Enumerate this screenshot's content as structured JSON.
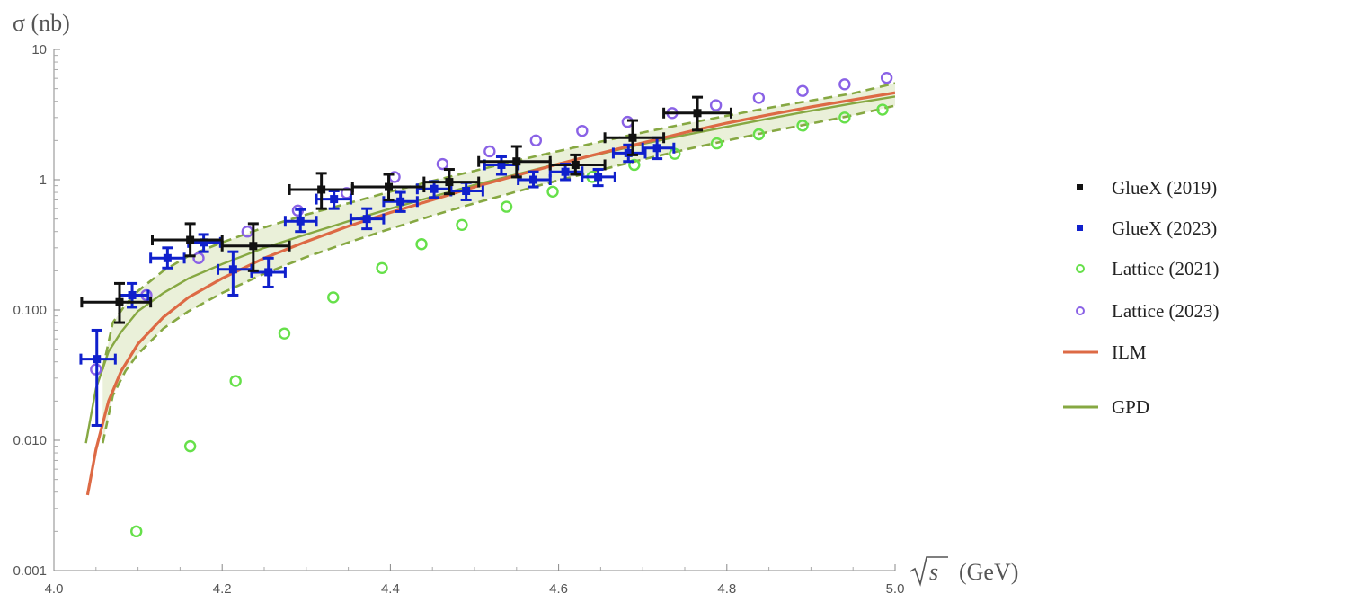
{
  "chart_data": {
    "type": "scatter",
    "y_title": "σ (nb)",
    "x_title_radicand": "s",
    "x_title_unit": "(GeV)",
    "xlim": [
      4.0,
      5.0
    ],
    "ylim": [
      0.001,
      10
    ],
    "y_scale": "log",
    "x_ticks": [
      "4.0",
      "4.2",
      "4.4",
      "4.6",
      "4.8",
      "5.0"
    ],
    "y_ticks": [
      "0.001",
      "0.010",
      "0.100",
      "1",
      "10"
    ],
    "legend_position": "right",
    "colors": {
      "gluex2019": "#111111",
      "gluex2023": "#1020cc",
      "lattice2021": "#66e04a",
      "lattice2023": "#8a62e6",
      "ilm": "#dd6a45",
      "gpd": "#86a842",
      "band_fill": "#eaf0d9"
    },
    "series": [
      {
        "name": "GlueX (2019)",
        "key": "gluex2019",
        "marker": "square",
        "points": [
          {
            "x": 4.078,
            "y": 0.115,
            "xlo": 4.033,
            "xhi": 4.115,
            "ylo": 0.08,
            "yhi": 0.16
          },
          {
            "x": 4.162,
            "y": 0.345,
            "xlo": 4.117,
            "xhi": 4.2,
            "ylo": 0.26,
            "yhi": 0.46
          },
          {
            "x": 4.237,
            "y": 0.31,
            "xlo": 4.2,
            "xhi": 4.28,
            "ylo": 0.2,
            "yhi": 0.46
          },
          {
            "x": 4.318,
            "y": 0.84,
            "xlo": 4.28,
            "xhi": 4.355,
            "ylo": 0.6,
            "yhi": 1.12
          },
          {
            "x": 4.398,
            "y": 0.88,
            "xlo": 4.355,
            "xhi": 4.44,
            "ylo": 0.7,
            "yhi": 1.1
          },
          {
            "x": 4.47,
            "y": 0.96,
            "xlo": 4.44,
            "xhi": 4.505,
            "ylo": 0.78,
            "yhi": 1.2
          },
          {
            "x": 4.55,
            "y": 1.38,
            "xlo": 4.505,
            "xhi": 4.59,
            "ylo": 1.05,
            "yhi": 1.8
          },
          {
            "x": 4.62,
            "y": 1.3,
            "xlo": 4.59,
            "xhi": 4.655,
            "ylo": 1.1,
            "yhi": 1.55
          },
          {
            "x": 4.688,
            "y": 2.1,
            "xlo": 4.655,
            "xhi": 4.725,
            "ylo": 1.55,
            "yhi": 2.85
          },
          {
            "x": 4.765,
            "y": 3.25,
            "xlo": 4.725,
            "xhi": 4.805,
            "ylo": 2.4,
            "yhi": 4.3
          }
        ]
      },
      {
        "name": "GlueX (2023)",
        "key": "gluex2023",
        "marker": "square",
        "points": [
          {
            "x": 4.051,
            "y": 0.042,
            "xlo": 4.032,
            "xhi": 4.073,
            "ylo": 0.013,
            "yhi": 0.07
          },
          {
            "x": 4.093,
            "y": 0.13,
            "xlo": 4.078,
            "xhi": 4.112,
            "ylo": 0.105,
            "yhi": 0.16
          },
          {
            "x": 4.135,
            "y": 0.25,
            "xlo": 4.115,
            "xhi": 4.155,
            "ylo": 0.21,
            "yhi": 0.3
          },
          {
            "x": 4.178,
            "y": 0.33,
            "xlo": 4.16,
            "xhi": 4.198,
            "ylo": 0.28,
            "yhi": 0.38
          },
          {
            "x": 4.213,
            "y": 0.205,
            "xlo": 4.195,
            "xhi": 4.235,
            "ylo": 0.13,
            "yhi": 0.28
          },
          {
            "x": 4.255,
            "y": 0.195,
            "xlo": 4.235,
            "xhi": 4.275,
            "ylo": 0.15,
            "yhi": 0.25
          },
          {
            "x": 4.293,
            "y": 0.48,
            "xlo": 4.275,
            "xhi": 4.312,
            "ylo": 0.4,
            "yhi": 0.59
          },
          {
            "x": 4.333,
            "y": 0.71,
            "xlo": 4.312,
            "xhi": 4.353,
            "ylo": 0.6,
            "yhi": 0.82
          },
          {
            "x": 4.372,
            "y": 0.5,
            "xlo": 4.353,
            "xhi": 4.392,
            "ylo": 0.42,
            "yhi": 0.6
          },
          {
            "x": 4.412,
            "y": 0.68,
            "xlo": 4.392,
            "xhi": 4.432,
            "ylo": 0.57,
            "yhi": 0.8
          },
          {
            "x": 4.452,
            "y": 0.85,
            "xlo": 4.432,
            "xhi": 4.472,
            "ylo": 0.73,
            "yhi": 0.97
          },
          {
            "x": 4.49,
            "y": 0.82,
            "xlo": 4.472,
            "xhi": 4.51,
            "ylo": 0.7,
            "yhi": 0.95
          },
          {
            "x": 4.532,
            "y": 1.3,
            "xlo": 4.512,
            "xhi": 4.552,
            "ylo": 1.1,
            "yhi": 1.5
          },
          {
            "x": 4.57,
            "y": 1.0,
            "xlo": 4.552,
            "xhi": 4.59,
            "ylo": 0.88,
            "yhi": 1.15
          },
          {
            "x": 4.608,
            "y": 1.15,
            "xlo": 4.59,
            "xhi": 4.628,
            "ylo": 1.0,
            "yhi": 1.32
          },
          {
            "x": 4.647,
            "y": 1.05,
            "xlo": 4.628,
            "xhi": 4.667,
            "ylo": 0.9,
            "yhi": 1.2
          },
          {
            "x": 4.683,
            "y": 1.6,
            "xlo": 4.665,
            "xhi": 4.703,
            "ylo": 1.38,
            "yhi": 1.85
          },
          {
            "x": 4.717,
            "y": 1.75,
            "xlo": 4.7,
            "xhi": 4.737,
            "ylo": 1.45,
            "yhi": 2.1
          }
        ]
      },
      {
        "name": "Lattice (2021)",
        "key": "lattice2021",
        "marker": "circle",
        "points": [
          {
            "x": 4.098,
            "y": 0.002
          },
          {
            "x": 4.162,
            "y": 0.009
          },
          {
            "x": 4.216,
            "y": 0.0285
          },
          {
            "x": 4.274,
            "y": 0.066
          },
          {
            "x": 4.332,
            "y": 0.125
          },
          {
            "x": 4.39,
            "y": 0.21
          },
          {
            "x": 4.437,
            "y": 0.32
          },
          {
            "x": 4.485,
            "y": 0.45
          },
          {
            "x": 4.538,
            "y": 0.62
          },
          {
            "x": 4.593,
            "y": 0.81
          },
          {
            "x": 4.64,
            "y": 1.05
          },
          {
            "x": 4.69,
            "y": 1.3
          },
          {
            "x": 4.738,
            "y": 1.58
          },
          {
            "x": 4.788,
            "y": 1.9
          },
          {
            "x": 4.838,
            "y": 2.23
          },
          {
            "x": 4.89,
            "y": 2.6
          },
          {
            "x": 4.94,
            "y": 3.0
          },
          {
            "x": 4.985,
            "y": 3.45
          }
        ]
      },
      {
        "name": "Lattice (2023)",
        "key": "lattice2023",
        "marker": "circle",
        "points": [
          {
            "x": 4.05,
            "y": 0.035
          },
          {
            "x": 4.11,
            "y": 0.13
          },
          {
            "x": 4.172,
            "y": 0.25
          },
          {
            "x": 4.23,
            "y": 0.4
          },
          {
            "x": 4.29,
            "y": 0.58
          },
          {
            "x": 4.348,
            "y": 0.79
          },
          {
            "x": 4.405,
            "y": 1.05
          },
          {
            "x": 4.462,
            "y": 1.32
          },
          {
            "x": 4.518,
            "y": 1.65
          },
          {
            "x": 4.573,
            "y": 2.0
          },
          {
            "x": 4.628,
            "y": 2.37
          },
          {
            "x": 4.682,
            "y": 2.78
          },
          {
            "x": 4.735,
            "y": 3.25
          },
          {
            "x": 4.787,
            "y": 3.73
          },
          {
            "x": 4.838,
            "y": 4.25
          },
          {
            "x": 4.89,
            "y": 4.8
          },
          {
            "x": 4.94,
            "y": 5.4
          },
          {
            "x": 4.99,
            "y": 6.05
          }
        ]
      },
      {
        "name": "ILM",
        "key": "ilm",
        "marker": "line",
        "points": [
          {
            "x": 4.04,
            "y": 0.0038
          },
          {
            "x": 4.05,
            "y": 0.0085
          },
          {
            "x": 4.065,
            "y": 0.02
          },
          {
            "x": 4.08,
            "y": 0.034
          },
          {
            "x": 4.1,
            "y": 0.055
          },
          {
            "x": 4.13,
            "y": 0.088
          },
          {
            "x": 4.16,
            "y": 0.125
          },
          {
            "x": 4.2,
            "y": 0.175
          },
          {
            "x": 4.25,
            "y": 0.25
          },
          {
            "x": 4.3,
            "y": 0.335
          },
          {
            "x": 4.35,
            "y": 0.44
          },
          {
            "x": 4.4,
            "y": 0.56
          },
          {
            "x": 4.45,
            "y": 0.7
          },
          {
            "x": 4.5,
            "y": 0.88
          },
          {
            "x": 4.55,
            "y": 1.08
          },
          {
            "x": 4.6,
            "y": 1.32
          },
          {
            "x": 4.65,
            "y": 1.6
          },
          {
            "x": 4.7,
            "y": 1.92
          },
          {
            "x": 4.75,
            "y": 2.3
          },
          {
            "x": 4.8,
            "y": 2.72
          },
          {
            "x": 4.85,
            "y": 3.15
          },
          {
            "x": 4.9,
            "y": 3.62
          },
          {
            "x": 4.95,
            "y": 4.1
          },
          {
            "x": 5.0,
            "y": 4.65
          }
        ]
      },
      {
        "name": "GPD",
        "key": "gpd",
        "marker": "line",
        "points": [
          {
            "x": 4.038,
            "y": 0.0095
          },
          {
            "x": 4.05,
            "y": 0.025
          },
          {
            "x": 4.065,
            "y": 0.048
          },
          {
            "x": 4.08,
            "y": 0.068
          },
          {
            "x": 4.1,
            "y": 0.098
          },
          {
            "x": 4.13,
            "y": 0.135
          },
          {
            "x": 4.16,
            "y": 0.175
          },
          {
            "x": 4.2,
            "y": 0.225
          },
          {
            "x": 4.25,
            "y": 0.3
          },
          {
            "x": 4.3,
            "y": 0.38
          },
          {
            "x": 4.35,
            "y": 0.48
          },
          {
            "x": 4.4,
            "y": 0.6
          },
          {
            "x": 4.45,
            "y": 0.74
          },
          {
            "x": 4.5,
            "y": 0.91
          },
          {
            "x": 4.55,
            "y": 1.1
          },
          {
            "x": 4.6,
            "y": 1.33
          },
          {
            "x": 4.65,
            "y": 1.58
          },
          {
            "x": 4.7,
            "y": 1.88
          },
          {
            "x": 4.75,
            "y": 2.2
          },
          {
            "x": 4.8,
            "y": 2.55
          },
          {
            "x": 4.85,
            "y": 2.95
          },
          {
            "x": 4.9,
            "y": 3.38
          },
          {
            "x": 4.95,
            "y": 3.85
          },
          {
            "x": 5.0,
            "y": 4.35
          }
        ]
      }
    ],
    "gpd_band": {
      "upper": [
        {
          "x": 4.058,
          "y": 0.035
        },
        {
          "x": 4.07,
          "y": 0.08
        },
        {
          "x": 4.085,
          "y": 0.11
        },
        {
          "x": 4.1,
          "y": 0.14
        },
        {
          "x": 4.13,
          "y": 0.2
        },
        {
          "x": 4.16,
          "y": 0.26
        },
        {
          "x": 4.2,
          "y": 0.33
        },
        {
          "x": 4.25,
          "y": 0.43
        },
        {
          "x": 4.3,
          "y": 0.54
        },
        {
          "x": 4.35,
          "y": 0.66
        },
        {
          "x": 4.4,
          "y": 0.81
        },
        {
          "x": 4.45,
          "y": 0.98
        },
        {
          "x": 4.5,
          "y": 1.17
        },
        {
          "x": 4.55,
          "y": 1.4
        },
        {
          "x": 4.6,
          "y": 1.66
        },
        {
          "x": 4.65,
          "y": 1.96
        },
        {
          "x": 4.7,
          "y": 2.3
        },
        {
          "x": 4.75,
          "y": 2.68
        },
        {
          "x": 4.8,
          "y": 3.1
        },
        {
          "x": 4.85,
          "y": 3.56
        },
        {
          "x": 4.9,
          "y": 4.05
        },
        {
          "x": 4.95,
          "y": 4.6
        },
        {
          "x": 5.0,
          "y": 5.5
        }
      ],
      "lower": [
        {
          "x": 4.058,
          "y": 0.0095
        },
        {
          "x": 4.07,
          "y": 0.022
        },
        {
          "x": 4.085,
          "y": 0.034
        },
        {
          "x": 4.1,
          "y": 0.046
        },
        {
          "x": 4.13,
          "y": 0.072
        },
        {
          "x": 4.16,
          "y": 0.098
        },
        {
          "x": 4.2,
          "y": 0.135
        },
        {
          "x": 4.25,
          "y": 0.19
        },
        {
          "x": 4.3,
          "y": 0.255
        },
        {
          "x": 4.35,
          "y": 0.33
        },
        {
          "x": 4.4,
          "y": 0.42
        },
        {
          "x": 4.45,
          "y": 0.53
        },
        {
          "x": 4.5,
          "y": 0.66
        },
        {
          "x": 4.55,
          "y": 0.81
        },
        {
          "x": 4.6,
          "y": 0.99
        },
        {
          "x": 4.65,
          "y": 1.19
        },
        {
          "x": 4.7,
          "y": 1.43
        },
        {
          "x": 4.75,
          "y": 1.7
        },
        {
          "x": 4.8,
          "y": 2.0
        },
        {
          "x": 4.85,
          "y": 2.33
        },
        {
          "x": 4.9,
          "y": 2.7
        },
        {
          "x": 4.95,
          "y": 3.12
        },
        {
          "x": 5.0,
          "y": 3.7
        }
      ]
    }
  }
}
